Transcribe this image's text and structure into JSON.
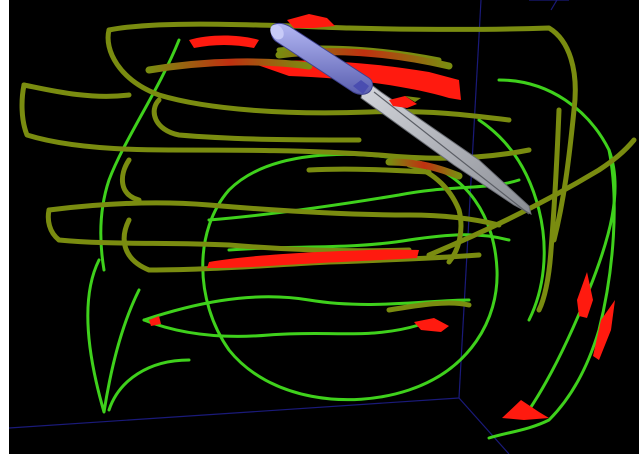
{
  "scene": {
    "background_color": "#000000",
    "frame_color": "#ffffff",
    "bounding_box_color": "#1a1a7a",
    "track_colors": {
      "low": "#3fd11c",
      "mid": "#7a8c10",
      "high": "#ff1a0f"
    },
    "instrument": {
      "handle_color": "#8a8fe0",
      "blade_color": "#b8bcc4"
    }
  }
}
